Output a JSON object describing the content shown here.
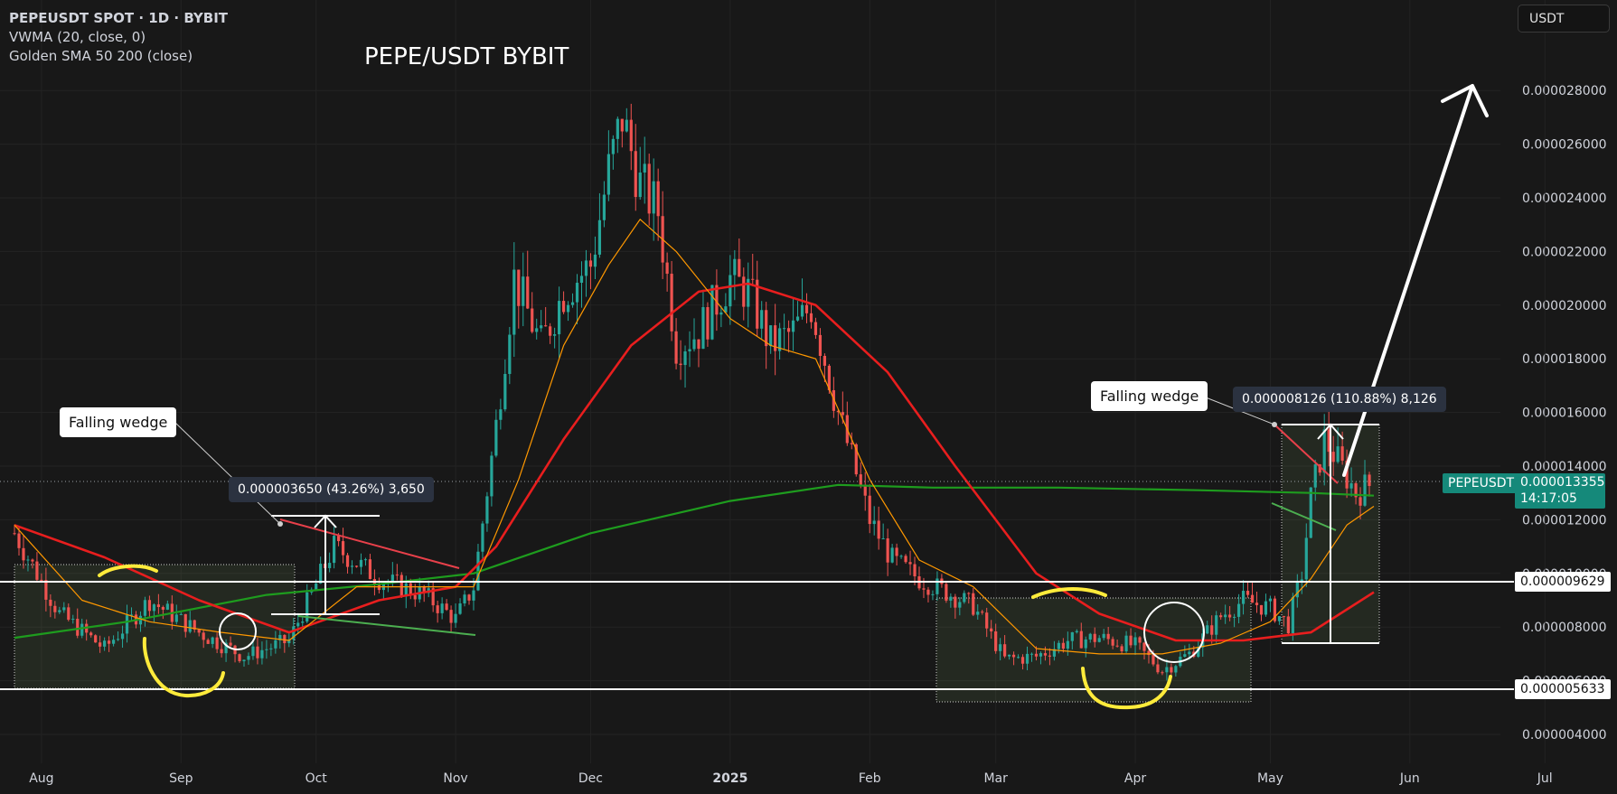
{
  "legend": {
    "symbol": "PEPEUSDT SPOT · 1D · BYBIT",
    "indicator1": "VWMA (20, close, 0)",
    "indicator2": "Golden SMA 50 200 (close)"
  },
  "title": "PEPE/USDT BYBIT",
  "currency_button": "USDT",
  "annotations": {
    "wedge_left": "Falling wedge",
    "wedge_right": "Falling wedge",
    "measure_left": "0.000003650 (43.26%) 3,650",
    "measure_right": "0.000008126 (110.88%) 8,126"
  },
  "price_tags": {
    "symbol": "PEPEUSDT",
    "last_price": "0.000013355",
    "countdown": "14:17:05",
    "resistance": "0.000009629",
    "support": "0.000005633"
  },
  "colors": {
    "background": "#181818",
    "up_candle": "#26a69a",
    "down_candle": "#ef5350",
    "vwma": "#ff9800",
    "sma50": "#e81e1e",
    "sma200": "#1e9c1e",
    "highlight": "#ffeb3b"
  },
  "chart_data": {
    "type": "line",
    "x_tick_labels": [
      "Aug",
      "Sep",
      "Oct",
      "Nov",
      "Dec",
      "2025",
      "Feb",
      "Mar",
      "Apr",
      "May",
      "Jun",
      "Jul"
    ],
    "y_tick_labels": [
      "0.000004000",
      "0.000006000",
      "0.000008000",
      "0.000010000",
      "0.000012000",
      "0.000014000",
      "0.000016000",
      "0.000018000",
      "0.000020000",
      "0.000022000",
      "0.000024000",
      "0.000026000",
      "0.000028000"
    ],
    "ylim": [
      2.8e-06,
      2.94e-05
    ],
    "series": [
      {
        "name": "PEPEUSDT close",
        "color": "#26a69a",
        "x": [
          "2024-07-26",
          "2024-08-05",
          "2024-08-15",
          "2024-08-25",
          "2024-09-05",
          "2024-09-15",
          "2024-09-25",
          "2024-10-05",
          "2024-10-15",
          "2024-10-25",
          "2024-11-01",
          "2024-11-05",
          "2024-11-10",
          "2024-11-14",
          "2024-11-20",
          "2024-11-25",
          "2024-12-01",
          "2024-12-05",
          "2024-12-08",
          "2024-12-12",
          "2024-12-16",
          "2024-12-20",
          "2024-12-25",
          "2025-01-01",
          "2025-01-05",
          "2025-01-10",
          "2025-01-15",
          "2025-01-19",
          "2025-01-25",
          "2025-02-01",
          "2025-02-06",
          "2025-02-12",
          "2025-02-18",
          "2025-02-24",
          "2025-03-03",
          "2025-03-10",
          "2025-03-17",
          "2025-03-24",
          "2025-04-01",
          "2025-04-07",
          "2025-04-13",
          "2025-04-20",
          "2025-04-25",
          "2025-05-01",
          "2025-05-05",
          "2025-05-08",
          "2025-05-10",
          "2025-05-13",
          "2025-05-16",
          "2025-05-20",
          "2025-05-24"
        ],
        "y": [
          1.15e-05,
          8.5e-06,
          7.2e-06,
          9e-06,
          7.8e-06,
          6.9e-06,
          7.5e-06,
          1.1e-05,
          9.8e-06,
          9.2e-06,
          8.3e-06,
          9.5e-06,
          1.55e-05,
          2.1e-05,
          1.85e-05,
          2.05e-05,
          2.15e-05,
          2.5e-05,
          2.7e-05,
          2.45e-05,
          2.35e-05,
          1.85e-05,
          1.9e-05,
          2.1e-05,
          2.05e-05,
          1.85e-05,
          1.9e-05,
          2e-05,
          1.6e-05,
          1.2e-05,
          1.05e-05,
          9.8e-06,
          9.3e-06,
          8.8e-06,
          6.8e-06,
          6.9e-06,
          7.5e-06,
          7.6e-06,
          7.3e-06,
          6.4e-06,
          7e-06,
          8.4e-06,
          9e-06,
          8.7e-06,
          8.1e-06,
          1e-05,
          1.28e-05,
          1.5e-05,
          1.42e-05,
          1.3e-05,
          1.34e-05
        ]
      },
      {
        "name": "VWMA (20, close, 0)",
        "color": "#ff9800",
        "x": [
          "2024-07-26",
          "2024-08-10",
          "2024-08-25",
          "2024-09-10",
          "2024-09-25",
          "2024-10-10",
          "2024-10-25",
          "2024-11-05",
          "2024-11-15",
          "2024-11-25",
          "2024-12-05",
          "2024-12-12",
          "2024-12-20",
          "2025-01-01",
          "2025-01-10",
          "2025-01-20",
          "2025-02-01",
          "2025-02-12",
          "2025-02-24",
          "2025-03-10",
          "2025-03-24",
          "2025-04-07",
          "2025-04-20",
          "2025-05-01",
          "2025-05-10",
          "2025-05-18",
          "2025-05-24"
        ],
        "y": [
          1.18e-05,
          9e-06,
          8.2e-06,
          7.8e-06,
          7.5e-06,
          9.5e-06,
          9.5e-06,
          9.5e-06,
          1.35e-05,
          1.85e-05,
          2.15e-05,
          2.32e-05,
          2.2e-05,
          1.95e-05,
          1.85e-05,
          1.8e-05,
          1.35e-05,
          1.05e-05,
          9.5e-06,
          7.2e-06,
          7e-06,
          7e-06,
          7.4e-06,
          8.2e-06,
          9.8e-06,
          1.18e-05,
          1.25e-05
        ]
      },
      {
        "name": "SMA 50",
        "color": "#e81e1e",
        "x": [
          "2024-07-26",
          "2024-08-15",
          "2024-09-05",
          "2024-09-25",
          "2024-10-15",
          "2024-11-01",
          "2024-11-10",
          "2024-11-25",
          "2024-12-10",
          "2024-12-25",
          "2025-01-05",
          "2025-01-20",
          "2025-02-05",
          "2025-02-20",
          "2025-03-10",
          "2025-03-24",
          "2025-04-10",
          "2025-04-25",
          "2025-05-10",
          "2025-05-24"
        ],
        "y": [
          1.18e-05,
          1.06e-05,
          9e-06,
          7.8e-06,
          9e-06,
          9.5e-06,
          1.1e-05,
          1.5e-05,
          1.85e-05,
          2.05e-05,
          2.08e-05,
          2e-05,
          1.75e-05,
          1.4e-05,
          1e-05,
          8.5e-06,
          7.5e-06,
          7.5e-06,
          7.8e-06,
          9.3e-06
        ]
      },
      {
        "name": "SMA 200",
        "color": "#1e9c1e",
        "x": [
          "2024-07-26",
          "2024-08-20",
          "2024-09-20",
          "2024-10-15",
          "2024-11-05",
          "2024-12-01",
          "2025-01-01",
          "2025-01-25",
          "2025-02-15",
          "2025-03-15",
          "2025-04-15",
          "2025-05-10",
          "2025-05-24"
        ],
        "y": [
          7.6e-06,
          8.2e-06,
          9.2e-06,
          9.6e-06,
          1e-05,
          1.15e-05,
          1.27e-05,
          1.33e-05,
          1.32e-05,
          1.32e-05,
          1.31e-05,
          1.3e-05,
          1.29e-05
        ]
      }
    ],
    "grid": true,
    "legend": "top-left"
  }
}
